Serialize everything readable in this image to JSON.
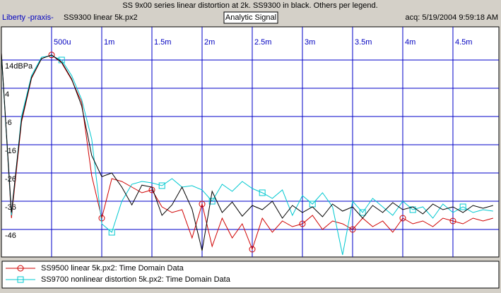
{
  "chart_data": {
    "type": "line",
    "title": "SS 9x00 series linear distortion at 2k. SS9300 in black. Others per legend.",
    "brand": "Liberty -praxis-",
    "mode": "Analytic Signal",
    "acquired": "acq: 5/19/2004 9:59:18 AM",
    "x": [
      0,
      0.0001,
      0.0002,
      0.0003,
      0.0004,
      0.0005,
      0.0006,
      0.0007,
      0.0008,
      0.0009,
      0.001,
      0.0011,
      0.0012,
      0.0013,
      0.0014,
      0.0015,
      0.0016,
      0.0017,
      0.0018,
      0.0019,
      0.002,
      0.0021,
      0.0022,
      0.0023,
      0.0024,
      0.0025,
      0.0026,
      0.0027,
      0.0028,
      0.0029,
      0.003,
      0.0031,
      0.0032,
      0.0033,
      0.0034,
      0.0035,
      0.0036,
      0.0037,
      0.0038,
      0.0039,
      0.004,
      0.0041,
      0.0042,
      0.0043,
      0.0044,
      0.0045,
      0.0046,
      0.0047,
      0.0048,
      0.0049
    ],
    "xlim": [
      0,
      0.004958
    ],
    "xticks": [
      {
        "value": 0.0005,
        "label": "500u"
      },
      {
        "value": 0.001,
        "label": "1m"
      },
      {
        "value": 0.0015,
        "label": "1.5m"
      },
      {
        "value": 0.002,
        "label": "2m"
      },
      {
        "value": 0.0025,
        "label": "2.5m"
      },
      {
        "value": 0.003,
        "label": "3m"
      },
      {
        "value": 0.0035,
        "label": "3.5m"
      },
      {
        "value": 0.004,
        "label": "4m"
      },
      {
        "value": 0.0045,
        "label": "4.5m"
      }
    ],
    "ylim": [
      -55.75,
      25.75
    ],
    "yticks": [
      {
        "value": 14,
        "label": "14dBPa"
      },
      4,
      -6,
      -16,
      -26,
      -36,
      -46
    ],
    "grid": true,
    "legend": "bottom",
    "series": [
      {
        "name": "SS9300 linear 5k.px2",
        "color": "#000000",
        "values": [
          16.5,
          -40,
          -7.3,
          7.8,
          14.5,
          15.8,
          13.3,
          7.3,
          -2.3,
          -19.8,
          -27.3,
          -26,
          -31,
          -37.3,
          -30.3,
          -31,
          -41,
          -37.3,
          -31,
          -38.8,
          -53.5,
          -32.5,
          -40,
          -36.3,
          -41.3,
          -37.5,
          -39,
          -36,
          -42,
          -37.5,
          -40,
          -38,
          -41.5,
          -37,
          -39.5,
          -38,
          -42,
          -37.5,
          -40,
          -36.5,
          -39,
          -38,
          -40.5,
          -37,
          -39,
          -38,
          -40,
          -37.5,
          -38.5,
          -37.5
        ]
      },
      {
        "name": "SS9500 linear 5k.px2:  Time Domain Data",
        "color": "#d00000",
        "marker": "circle",
        "values": [
          16.5,
          -42,
          -8,
          7.5,
          14.5,
          15.8,
          13,
          7,
          -1,
          -27,
          -42,
          -28,
          -29,
          -31,
          -33,
          -32,
          -38,
          -40,
          -39,
          -49,
          -37,
          -52,
          -42,
          -49,
          -44,
          -53,
          -42,
          -47,
          -43,
          -45,
          -44,
          -41,
          -46,
          -43,
          -44,
          -46,
          -42,
          -45,
          -43,
          -47,
          -42,
          -44,
          -43,
          -45,
          -42,
          -43,
          -44,
          -42,
          -43,
          -42
        ]
      },
      {
        "name": "SS9700 nonlinear distortion 5k.px2:  Time Domain Data",
        "color": "#00c8d0",
        "marker": "square",
        "values": [
          16,
          -41,
          -6,
          8.5,
          15,
          15.5,
          14,
          8.5,
          0,
          -14,
          -44,
          -47,
          -36,
          -30,
          -29,
          -29.5,
          -30.5,
          -28,
          -31,
          -30.5,
          -32,
          -36,
          -30,
          -32.5,
          -29,
          -31.5,
          -33,
          -35,
          -32,
          -41,
          -34,
          -37,
          -33,
          -38,
          -55,
          -36,
          -40,
          -35,
          -38,
          -41,
          -36,
          -39,
          -38,
          -42,
          -37,
          -40,
          -38,
          -40,
          -39,
          -39.5
        ]
      }
    ]
  }
}
